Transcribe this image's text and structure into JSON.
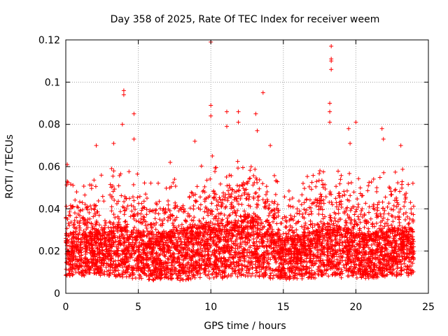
{
  "chart_data": {
    "type": "scatter",
    "title": "Day 358 of 2025, Rate Of TEC Index for receiver weem",
    "xlabel": "GPS time / hours",
    "ylabel": "ROTI / TECUs",
    "xlim": [
      0,
      25
    ],
    "ylim": [
      0,
      0.12
    ],
    "x_ticks": [
      "0",
      "5",
      "10",
      "15",
      "20",
      "25"
    ],
    "y_ticks": [
      "0",
      "0.02",
      "0.04",
      "0.06",
      "0.08",
      "0.1",
      "0.12"
    ],
    "x_tick_values": [
      0,
      5,
      10,
      15,
      20,
      25
    ],
    "y_tick_values": [
      0,
      0.02,
      0.04,
      0.06,
      0.08,
      0.1,
      0.12
    ],
    "grid": true,
    "marker": "plus",
    "color": "#ff0000",
    "notable_points": [
      {
        "x": 0.1,
        "y": 0.061
      },
      {
        "x": 0.1,
        "y": 0.053
      },
      {
        "x": 2.1,
        "y": 0.07
      },
      {
        "x": 3.3,
        "y": 0.071
      },
      {
        "x": 4.0,
        "y": 0.096
      },
      {
        "x": 4.0,
        "y": 0.094
      },
      {
        "x": 3.9,
        "y": 0.08
      },
      {
        "x": 4.7,
        "y": 0.085
      },
      {
        "x": 4.7,
        "y": 0.073
      },
      {
        "x": 7.2,
        "y": 0.062
      },
      {
        "x": 8.9,
        "y": 0.072
      },
      {
        "x": 10.0,
        "y": 0.119
      },
      {
        "x": 10.0,
        "y": 0.089
      },
      {
        "x": 10.0,
        "y": 0.084
      },
      {
        "x": 10.1,
        "y": 0.065
      },
      {
        "x": 11.1,
        "y": 0.086
      },
      {
        "x": 11.1,
        "y": 0.079
      },
      {
        "x": 11.9,
        "y": 0.086
      },
      {
        "x": 11.9,
        "y": 0.081
      },
      {
        "x": 13.1,
        "y": 0.085
      },
      {
        "x": 13.2,
        "y": 0.077
      },
      {
        "x": 13.6,
        "y": 0.095
      },
      {
        "x": 14.1,
        "y": 0.07
      },
      {
        "x": 18.3,
        "y": 0.117
      },
      {
        "x": 18.3,
        "y": 0.111
      },
      {
        "x": 18.3,
        "y": 0.11
      },
      {
        "x": 18.3,
        "y": 0.106
      },
      {
        "x": 18.2,
        "y": 0.09
      },
      {
        "x": 18.2,
        "y": 0.086
      },
      {
        "x": 18.2,
        "y": 0.081
      },
      {
        "x": 19.5,
        "y": 0.078
      },
      {
        "x": 19.6,
        "y": 0.071
      },
      {
        "x": 20.0,
        "y": 0.081
      },
      {
        "x": 21.8,
        "y": 0.078
      },
      {
        "x": 21.9,
        "y": 0.073
      },
      {
        "x": 23.1,
        "y": 0.07
      }
    ],
    "envelope": [
      {
        "x": 0.0,
        "base_min": 0.008,
        "base_max": 0.03,
        "upper": 0.042
      },
      {
        "x": 1.0,
        "base_min": 0.008,
        "base_max": 0.028,
        "upper": 0.041
      },
      {
        "x": 2.0,
        "base_min": 0.008,
        "base_max": 0.03,
        "upper": 0.043
      },
      {
        "x": 3.0,
        "base_min": 0.008,
        "base_max": 0.031,
        "upper": 0.048
      },
      {
        "x": 4.0,
        "base_min": 0.007,
        "base_max": 0.032,
        "upper": 0.047
      },
      {
        "x": 5.0,
        "base_min": 0.007,
        "base_max": 0.03,
        "upper": 0.045
      },
      {
        "x": 6.0,
        "base_min": 0.006,
        "base_max": 0.028,
        "upper": 0.042
      },
      {
        "x": 7.0,
        "base_min": 0.006,
        "base_max": 0.029,
        "upper": 0.043
      },
      {
        "x": 8.0,
        "base_min": 0.006,
        "base_max": 0.031,
        "upper": 0.045
      },
      {
        "x": 9.0,
        "base_min": 0.007,
        "base_max": 0.033,
        "upper": 0.048
      },
      {
        "x": 10.0,
        "base_min": 0.007,
        "base_max": 0.034,
        "upper": 0.05
      },
      {
        "x": 11.0,
        "base_min": 0.007,
        "base_max": 0.033,
        "upper": 0.049
      },
      {
        "x": 12.0,
        "base_min": 0.008,
        "base_max": 0.036,
        "upper": 0.052
      },
      {
        "x": 13.0,
        "base_min": 0.008,
        "base_max": 0.038,
        "upper": 0.056
      },
      {
        "x": 14.0,
        "base_min": 0.007,
        "base_max": 0.034,
        "upper": 0.05
      },
      {
        "x": 15.0,
        "base_min": 0.006,
        "base_max": 0.026,
        "upper": 0.038
      },
      {
        "x": 16.0,
        "base_min": 0.006,
        "base_max": 0.028,
        "upper": 0.042
      },
      {
        "x": 17.0,
        "base_min": 0.007,
        "base_max": 0.03,
        "upper": 0.045
      },
      {
        "x": 18.0,
        "base_min": 0.008,
        "base_max": 0.034,
        "upper": 0.05
      },
      {
        "x": 19.0,
        "base_min": 0.007,
        "base_max": 0.032,
        "upper": 0.047
      },
      {
        "x": 20.0,
        "base_min": 0.007,
        "base_max": 0.029,
        "upper": 0.043
      },
      {
        "x": 21.0,
        "base_min": 0.007,
        "base_max": 0.028,
        "upper": 0.041
      },
      {
        "x": 22.0,
        "base_min": 0.008,
        "base_max": 0.03,
        "upper": 0.046
      },
      {
        "x": 23.0,
        "base_min": 0.008,
        "base_max": 0.032,
        "upper": 0.052
      },
      {
        "x": 24.0,
        "base_min": 0.008,
        "base_max": 0.03,
        "upper": 0.045
      }
    ]
  }
}
